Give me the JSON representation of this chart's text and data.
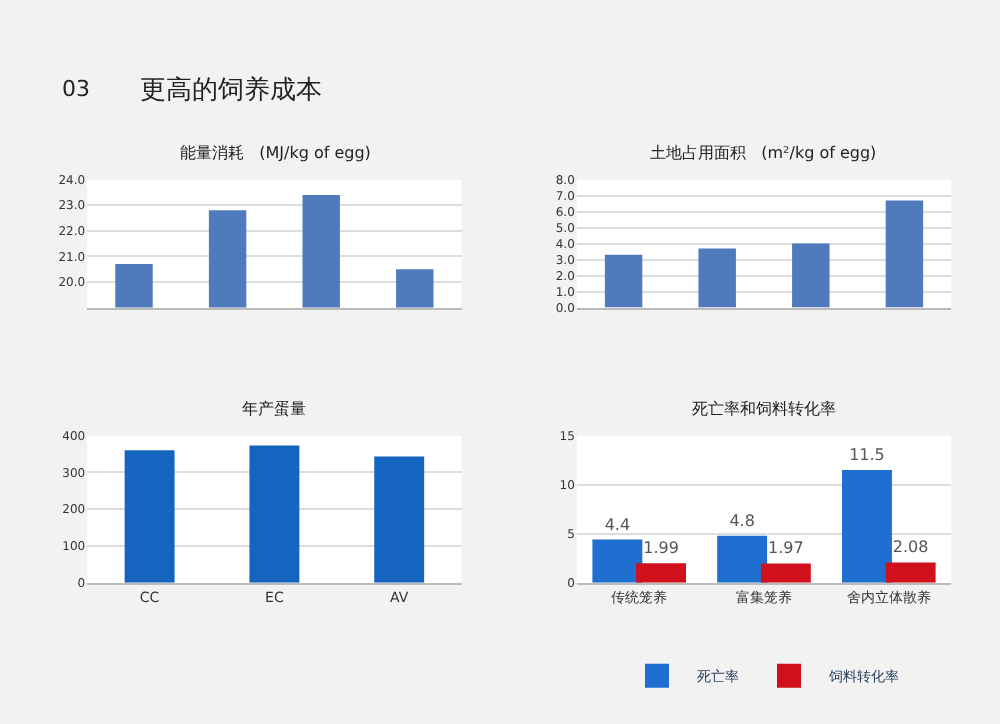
{
  "chart_data": [
    {
      "type": "bar",
      "title": "能量消耗   (MJ/kg of egg)",
      "annotations": [
        "03",
        "更高的饲养成本"
      ],
      "categories": [
        null,
        null,
        null,
        null
      ],
      "values": [
        20.7,
        22.8,
        23.4,
        20.5
      ],
      "color": "#4f7bbd",
      "ylim": [
        19.0,
        24.0
      ],
      "yticks": [
        {
          "value": 20,
          "label": "20.0"
        },
        {
          "value": 21,
          "label": "21.0"
        },
        {
          "value": 22,
          "label": "22.0"
        },
        {
          "value": 23,
          "label": "23.0"
        },
        {
          "value": 24,
          "label": "24.0"
        }
      ],
      "grid": "y"
    },
    {
      "type": "bar",
      "title": "土地占用面积   (m²/kg of egg)",
      "categories": [
        null,
        null,
        null,
        null
      ],
      "values": [
        3.3,
        3.7,
        4.0,
        6.7
      ],
      "color": "#4f7bbd",
      "ylim": [
        0,
        8
      ],
      "yticks": [
        {
          "value": 0,
          "label": "0.0"
        },
        {
          "value": 1,
          "label": "1.0"
        },
        {
          "value": 2,
          "label": "2.0"
        },
        {
          "value": 3,
          "label": "3.0"
        },
        {
          "value": 4,
          "label": "4.0"
        },
        {
          "value": 5,
          "label": "5.0"
        },
        {
          "value": 6,
          "label": "6.0"
        },
        {
          "value": 7,
          "label": "7.0"
        },
        {
          "value": 8,
          "label": "8.0"
        }
      ],
      "grid": "y"
    },
    {
      "type": "bar",
      "title": "年产蛋量",
      "categories": [
        "CC",
        "EC",
        "AV"
      ],
      "values": [
        360,
        373,
        343
      ],
      "color": "#1565c0",
      "ylim": [
        0,
        400
      ],
      "yticks": [
        0,
        100,
        200,
        300,
        400
      ],
      "grid": "y"
    },
    {
      "type": "bar",
      "title": "死亡率和饲料转化率",
      "categories": [
        "传统笼养",
        "富集笼养",
        "舍内立体散养"
      ],
      "series": [
        {
          "name": "死亡率",
          "color": "#1e6fd0",
          "values": [
            4.4,
            4.8,
            11.5
          ]
        },
        {
          "name": "饲料转化率",
          "color": "#d0101a",
          "values": [
            1.99,
            1.97,
            2.08
          ]
        }
      ],
      "data_labels": true,
      "ylim": [
        0,
        15
      ],
      "yticks": [
        0,
        5,
        10,
        15
      ],
      "grid": "y",
      "legend": "bottom"
    }
  ]
}
